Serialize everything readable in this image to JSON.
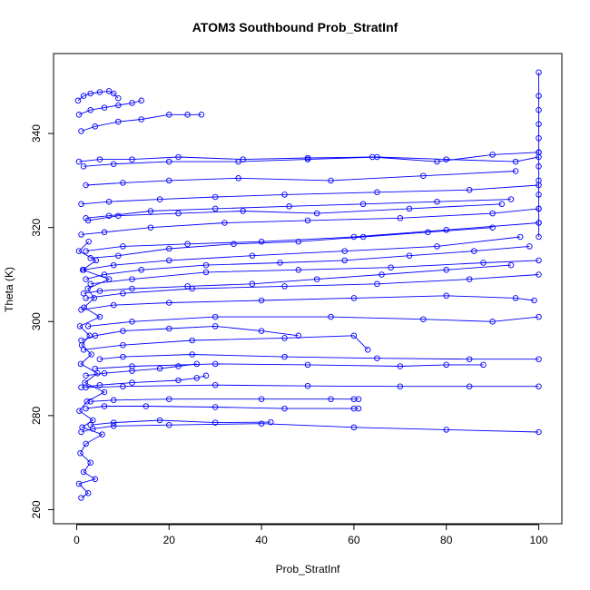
{
  "chart_data": {
    "type": "line",
    "title": "ATOM3 Southbound Prob_StratInf",
    "xlabel": "Prob_StratInf",
    "ylabel": "Theta (K)",
    "xlim": [
      -5,
      105
    ],
    "ylim": [
      257,
      357
    ],
    "xticks": [
      0,
      20,
      40,
      60,
      80,
      100
    ],
    "yticks": [
      260,
      280,
      300,
      320,
      340
    ],
    "grid": false,
    "legend": "none",
    "marker": "open-circle",
    "series_color": "#0000ff",
    "series": [
      {
        "x": [
          1.0,
          2.5,
          0.5,
          4.0,
          1.5,
          3.0,
          0.8,
          2.0,
          5.5,
          1.2,
          3.5,
          0.6,
          2.2,
          6.0,
          1.8,
          4.5,
          0.9,
          3.2,
          1.1,
          2.8,
          0.7,
          5.0,
          1.6,
          3.8,
          2.4,
          7.0,
          1.3,
          4.2,
          0.5,
          2.6
        ],
        "y": [
          262.5,
          263.5,
          265.5,
          266.5,
          268.0,
          270.0,
          272.0,
          274.0,
          276.0,
          277.5,
          279.0,
          281.0,
          283.0,
          285.0,
          287.0,
          289.0,
          291.0,
          293.0,
          295.0,
          297.0,
          299.0,
          301.0,
          303.0,
          305.0,
          307.0,
          309.0,
          311.0,
          313.0,
          315.0,
          317.0
        ]
      },
      {
        "x": [
          1.0,
          3.5,
          8.0,
          20.0,
          40.0,
          60.0,
          80.0,
          100.0
        ],
        "y": [
          276.5,
          277.2,
          277.8,
          278.0,
          278.3,
          277.5,
          277.0,
          276.5
        ]
      },
      {
        "x": [
          2.0,
          6.0,
          15.0,
          30.0,
          45.0,
          60.0,
          61.0
        ],
        "y": [
          281.5,
          282.0,
          282.0,
          281.8,
          281.5,
          281.5,
          281.5
        ]
      },
      {
        "x": [
          3.0,
          8.0,
          20.0,
          40.0,
          55.0,
          60.0,
          61.0
        ],
        "y": [
          283.0,
          283.3,
          283.5,
          283.5,
          283.5,
          283.5,
          283.5
        ]
      },
      {
        "x": [
          2.0,
          10.0,
          30.0,
          50.0,
          70.0,
          85.0,
          100.0
        ],
        "y": [
          286.0,
          286.2,
          286.5,
          286.3,
          286.2,
          286.2,
          286.2
        ]
      },
      {
        "x": [
          4.0,
          12.0,
          30.0,
          50.0,
          70.0,
          80.0,
          88.0
        ],
        "y": [
          290.0,
          290.5,
          291.0,
          290.8,
          290.5,
          290.8,
          290.8
        ]
      },
      {
        "x": [
          5.0,
          10.0,
          25.0,
          45.0,
          65.0,
          85.0,
          100.0
        ],
        "y": [
          292.0,
          292.5,
          293.0,
          292.5,
          292.2,
          292.0,
          292.0
        ]
      },
      {
        "x": [
          3.0,
          8.0,
          18.0,
          30.0,
          42.0
        ],
        "y": [
          278.0,
          278.5,
          279.0,
          278.5,
          278.6
        ]
      },
      {
        "x": [
          1.0,
          5.0,
          12.0,
          22.0,
          26.0,
          28.0
        ],
        "y": [
          286.0,
          286.5,
          287.0,
          287.5,
          288.0,
          288.5
        ]
      },
      {
        "x": [
          1.5,
          10.0,
          25.0,
          45.0,
          60.0,
          63.0
        ],
        "y": [
          294.0,
          295.0,
          296.0,
          296.5,
          297.0,
          294.0
        ]
      },
      {
        "x": [
          2.5,
          12.0,
          30.0,
          55.0,
          75.0,
          90.0,
          100.0
        ],
        "y": [
          299.0,
          300.0,
          301.0,
          301.0,
          300.5,
          300.0,
          301.0
        ]
      },
      {
        "x": [
          1.0,
          8.0,
          20.0,
          40.0,
          60.0,
          80.0,
          95.0,
          99.0
        ],
        "y": [
          302.5,
          303.5,
          304.0,
          304.5,
          305.0,
          305.5,
          305.0,
          304.5
        ]
      },
      {
        "x": [
          2.0,
          10.0,
          25.0,
          45.0,
          65.0,
          85.0,
          100.0
        ],
        "y": [
          305.0,
          306.0,
          307.0,
          307.5,
          308.0,
          309.0,
          310.0
        ]
      },
      {
        "x": [
          3.0,
          12.0,
          28.0,
          48.0,
          68.0,
          88.0,
          100.0
        ],
        "y": [
          308.0,
          309.0,
          310.5,
          311.0,
          311.5,
          312.5,
          313.0
        ]
      },
      {
        "x": [
          1.5,
          8.0,
          20.0,
          38.0,
          58.0,
          78.0,
          96.0
        ],
        "y": [
          311.0,
          312.0,
          313.0,
          314.0,
          315.0,
          316.0,
          318.0
        ]
      },
      {
        "x": [
          2.0,
          10.0,
          24.0,
          40.0,
          60.0,
          80.0,
          100.0
        ],
        "y": [
          315.0,
          316.0,
          316.5,
          317.0,
          318.0,
          319.5,
          321.0
        ]
      },
      {
        "x": [
          1.0,
          6.0,
          16.0,
          32.0,
          50.0,
          70.0,
          90.0,
          100.0
        ],
        "y": [
          318.5,
          319.0,
          320.0,
          321.0,
          321.5,
          322.0,
          323.0,
          324.0
        ]
      },
      {
        "x": [
          2.5,
          9.0,
          22.0,
          36.0,
          52.0,
          72.0,
          92.0
        ],
        "y": [
          321.5,
          322.5,
          323.0,
          323.5,
          323.0,
          324.0,
          325.0
        ]
      },
      {
        "x": [
          1.0,
          7.0,
          18.0,
          30.0,
          45.0,
          65.0,
          85.0,
          100.0
        ],
        "y": [
          325.0,
          325.5,
          326.0,
          326.5,
          327.0,
          327.5,
          328.0,
          329.0
        ]
      },
      {
        "x": [
          2.0,
          10.0,
          20.0,
          35.0,
          55.0,
          75.0,
          95.0
        ],
        "y": [
          329.0,
          329.5,
          330.0,
          330.5,
          330.0,
          331.0,
          332.0
        ]
      },
      {
        "x": [
          1.5,
          8.0,
          20.0,
          35.0,
          50.0,
          65.0,
          80.0,
          95.0,
          100.0
        ],
        "y": [
          333.0,
          333.5,
          334.0,
          334.0,
          334.5,
          335.0,
          334.5,
          334.0,
          335.0
        ]
      },
      {
        "x": [
          0.5,
          5.0,
          12.0,
          22.0,
          36.0,
          50.0,
          64.0,
          78.0,
          90.0,
          100.0
        ],
        "y": [
          334.0,
          334.5,
          334.5,
          335.0,
          334.5,
          334.8,
          335.0,
          334.0,
          335.5,
          336.0
        ]
      },
      {
        "x": [
          1.0,
          4.0,
          9.0,
          14.0,
          20.0,
          24.0,
          27.0
        ],
        "y": [
          340.5,
          341.5,
          342.5,
          343.0,
          344.0,
          344.0,
          344.0
        ]
      },
      {
        "x": [
          0.5,
          3.0,
          6.0,
          9.0,
          12.0,
          14.0
        ],
        "y": [
          344.0,
          345.0,
          345.5,
          346.0,
          346.5,
          347.0
        ]
      },
      {
        "x": [
          0.3,
          1.5,
          3.0,
          5.0,
          7.0,
          8.0,
          9.0
        ],
        "y": [
          347.0,
          348.0,
          348.5,
          348.8,
          349.0,
          348.5,
          347.5
        ]
      },
      {
        "x": [
          100.0,
          100.0,
          100.0,
          100.0,
          100.0,
          100.0,
          100.0,
          100.0,
          100.0,
          100.0,
          100.0,
          100.0
        ],
        "y": [
          318.0,
          321.0,
          324.0,
          327.0,
          330.0,
          333.0,
          336.0,
          339.0,
          342.0,
          345.0,
          348.0,
          353.0
        ]
      },
      {
        "x": [
          2.0,
          6.0,
          14.0,
          28.0,
          44.0,
          58.0,
          72.0,
          86.0,
          98.0
        ],
        "y": [
          309.0,
          310.0,
          311.0,
          312.0,
          312.5,
          313.0,
          314.0,
          315.0,
          316.0
        ]
      },
      {
        "x": [
          1.5,
          5.0,
          12.0,
          24.0,
          38.0,
          52.0,
          66.0,
          80.0,
          94.0
        ],
        "y": [
          306.0,
          306.5,
          307.0,
          307.5,
          308.0,
          309.0,
          310.0,
          311.0,
          312.0
        ]
      },
      {
        "x": [
          3.0,
          9.0,
          20.0,
          34.0,
          48.0,
          62.0,
          76.0,
          90.0
        ],
        "y": [
          313.5,
          314.0,
          315.5,
          316.5,
          317.0,
          318.0,
          319.0,
          320.0
        ]
      },
      {
        "x": [
          2.0,
          7.0,
          16.0,
          30.0,
          46.0,
          62.0,
          78.0,
          94.0
        ],
        "y": [
          322.0,
          322.5,
          323.5,
          324.0,
          324.5,
          325.0,
          325.5,
          326.0
        ]
      },
      {
        "x": [
          1.0,
          4.0,
          10.0,
          20.0,
          30.0,
          40.0,
          48.0
        ],
        "y": [
          296.0,
          297.0,
          298.0,
          298.5,
          299.0,
          298.0,
          297.0
        ]
      },
      {
        "x": [
          2.0,
          6.0,
          12.0,
          18.0,
          22.0,
          26.0
        ],
        "y": [
          288.5,
          289.0,
          289.5,
          290.0,
          290.5,
          291.0
        ]
      }
    ]
  }
}
